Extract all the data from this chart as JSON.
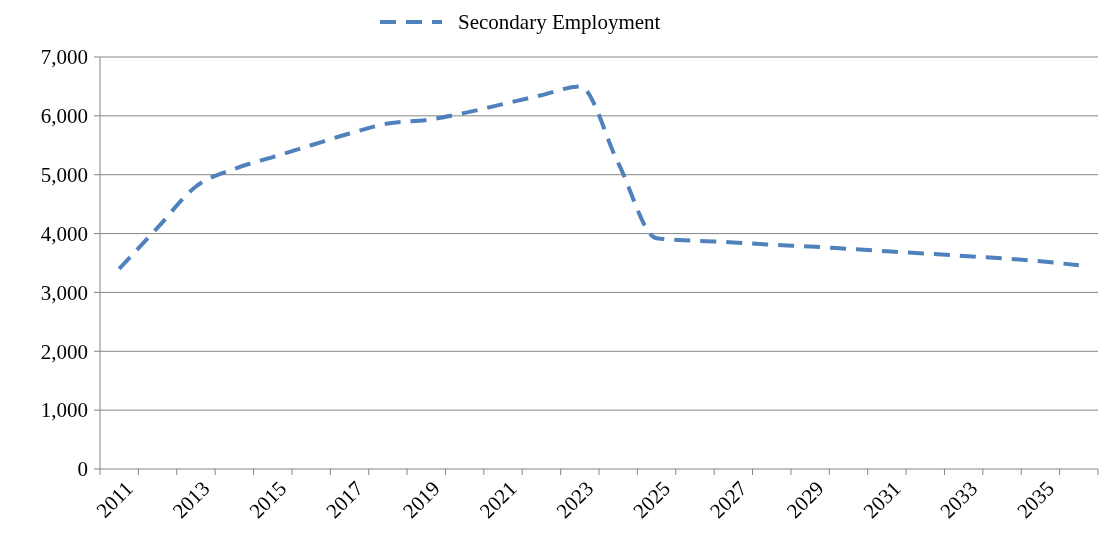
{
  "chart_data": {
    "type": "line",
    "categories": [
      "2011",
      null,
      "2013",
      null,
      "2015",
      null,
      "2017",
      null,
      "2019",
      null,
      "2021",
      null,
      "2023",
      null,
      "2025",
      null,
      "2027",
      null,
      "2029",
      null,
      "2031",
      null,
      "2033",
      null,
      "2035",
      null
    ],
    "series": [
      {
        "name": "Secondary Employment",
        "color": "#4f81bd",
        "values": [
          3400,
          4100,
          4800,
          5100,
          5300,
          5500,
          5700,
          5870,
          5930,
          6050,
          6200,
          6350,
          6500,
          5200,
          3920,
          3880,
          3850,
          3810,
          3780,
          3740,
          3700,
          3660,
          3620,
          3580,
          3530,
          3460
        ]
      }
    ],
    "ylim": [
      0,
      7000
    ],
    "yticks": [
      {
        "value": 0,
        "label": "0"
      },
      {
        "value": 1000,
        "label": "1,000"
      },
      {
        "value": 2000,
        "label": "2,000"
      },
      {
        "value": 3000,
        "label": "3,000"
      },
      {
        "value": 4000,
        "label": "4,000"
      },
      {
        "value": 5000,
        "label": "5,000"
      },
      {
        "value": 6000,
        "label": "6,000"
      },
      {
        "value": 7000,
        "label": "7,000"
      }
    ],
    "grid": "y",
    "legend": "top",
    "line_style": "dashed",
    "marker": "none"
  }
}
